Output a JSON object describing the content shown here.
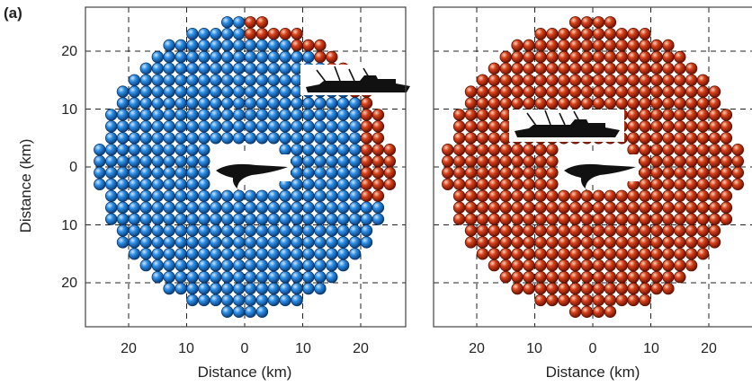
{
  "panel_label": "(a)",
  "x_axis_label": "Distance (km)",
  "y_axis_label": "Distance (km)",
  "x_tick_labels": [
    "20",
    "10",
    "0",
    "10",
    "20"
  ],
  "y_tick_labels": [
    "20",
    "10",
    "0",
    "10",
    "20"
  ],
  "colors": {
    "blue_sphere": "#1a7fd6",
    "red_sphere": "#c8320f",
    "silhouette": "#111111"
  },
  "icons": [
    "whale-icon",
    "ship-icon"
  ],
  "panels": [
    {
      "name": "left-panel",
      "fill_rule": "blue inside reach, red in the upper-right region near the ship"
    },
    {
      "name": "right-panel",
      "fill_rule": "all red"
    }
  ]
}
